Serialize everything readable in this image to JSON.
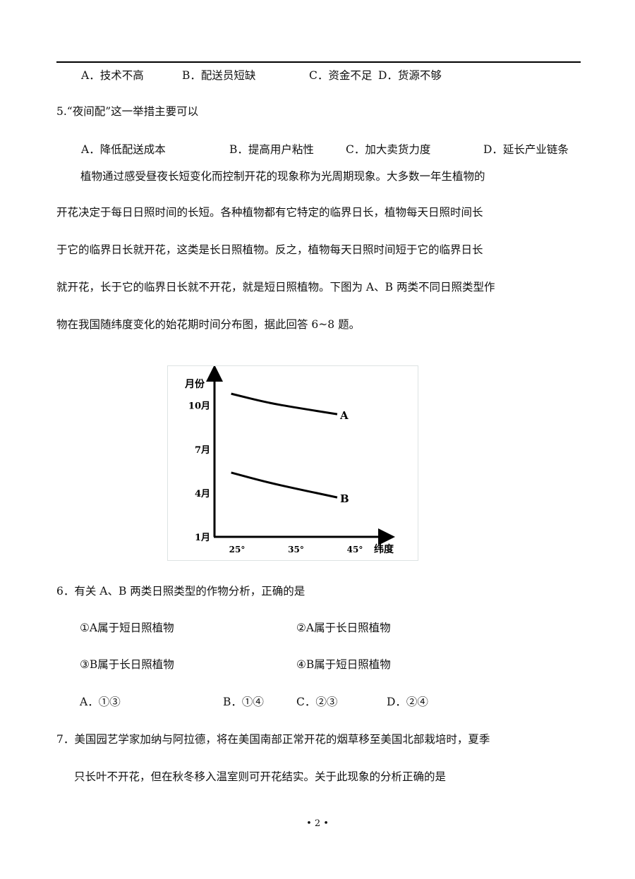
{
  "q4_options": [
    "A．技术不高",
    "B．配送员短缺",
    "C．资金不足",
    "D．货源不够"
  ],
  "q5": {
    "stem": "5.“夜间配”这一举措主要可以",
    "options": [
      "A．降低配送成本",
      "B．提高用户粘性",
      "C．加大卖货力度",
      "D．延长产业链条"
    ]
  },
  "passage": [
    "植物通过感受昼夜长短变化而控制开花的现象称为光周期现象。大多数一年生植物的",
    "开花决定于每日日照时间的长短。各种植物都有它特定的临界日长，植物每天日照时间长",
    "于它的临界日长就开花，这类是长日照植物。反之，植物每天日照时间短于它的临界日长",
    "就开花，长于它的临界日长就不开花，就是短日照植物。下图为 A、B 两类不同日照类型作",
    "物在我国随纬度变化的始花期时间分布图，据此回答 6~8 题。"
  ],
  "chart_data": {
    "type": "line",
    "ylabel": "月份",
    "xlabel": "纬度",
    "y_ticks": [
      {
        "v": 1,
        "label": "1月"
      },
      {
        "v": 4,
        "label": "4月"
      },
      {
        "v": 7,
        "label": "7月"
      },
      {
        "v": 10,
        "label": "10月"
      }
    ],
    "x_ticks": [
      {
        "v": 25,
        "label": "25°"
      },
      {
        "v": 35,
        "label": "35°"
      },
      {
        "v": 45,
        "label": "45°"
      }
    ],
    "xlim": [
      19,
      50
    ],
    "ylim": [
      1,
      11.8
    ],
    "grid": false,
    "series": [
      {
        "name": "A",
        "points": [
          [
            24,
            10.8
          ],
          [
            30,
            10.2
          ],
          [
            35,
            9.85
          ],
          [
            42,
            9.4
          ]
        ]
      },
      {
        "name": "B",
        "points": [
          [
            24,
            5.4
          ],
          [
            30,
            4.75
          ],
          [
            35,
            4.3
          ],
          [
            42,
            3.7
          ]
        ]
      }
    ]
  },
  "q6": {
    "stem": "6．有关 A、B 两类日照类型的作物分析，正确的是",
    "statements": [
      "①A属于短日照植物",
      "②A属于长日照植物",
      "③B属于长日照植物",
      "④B属于短日照植物"
    ],
    "options": [
      "A．①③",
      "B．①④",
      "C．②③",
      "D．②④"
    ]
  },
  "q7": {
    "lines": [
      "7．美国园艺学家加纳与阿拉德，将在美国南部正常开花的烟草移至美国北部栽培时，夏季",
      "只长叶不开花，但在秋冬移入温室则可开花结实。关于此现象的分析正确的是"
    ]
  },
  "page_number": "• 2 •"
}
